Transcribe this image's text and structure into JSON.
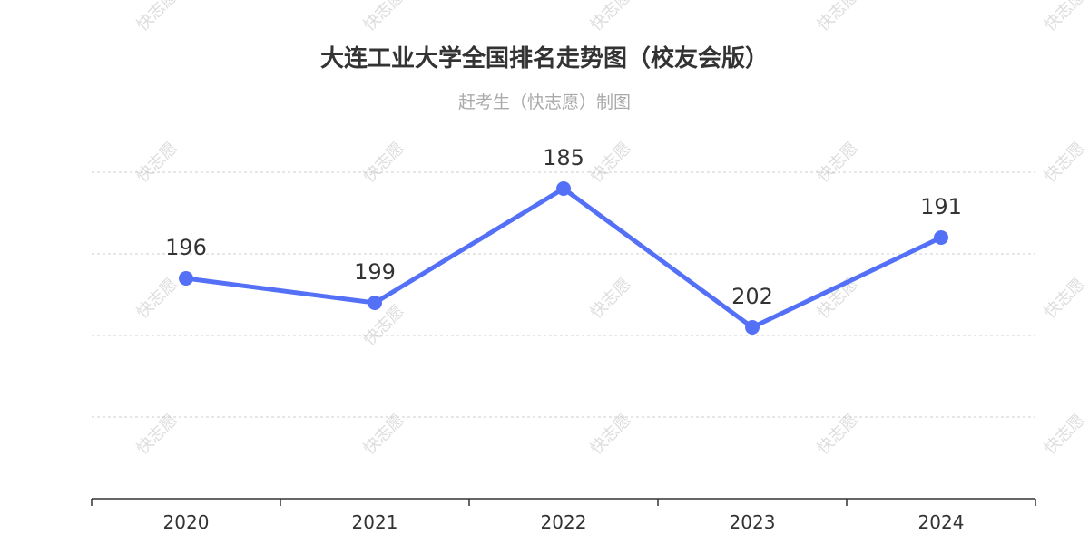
{
  "watermark": "快志愿",
  "chart_data": {
    "type": "line",
    "title": "大连工业大学全国排名走势图（校友会版）",
    "subtitle": "赶考生（快志愿）制图",
    "categories": [
      "2020",
      "2021",
      "2022",
      "2023",
      "2024"
    ],
    "series": [
      {
        "values": [
          196,
          199,
          185,
          202,
          191
        ]
      }
    ],
    "ylim": [
      183,
      223
    ],
    "y_inverted": true,
    "y_tick_labels_shown": false,
    "grid": true,
    "data_labels": true,
    "color": "#5470f6"
  }
}
